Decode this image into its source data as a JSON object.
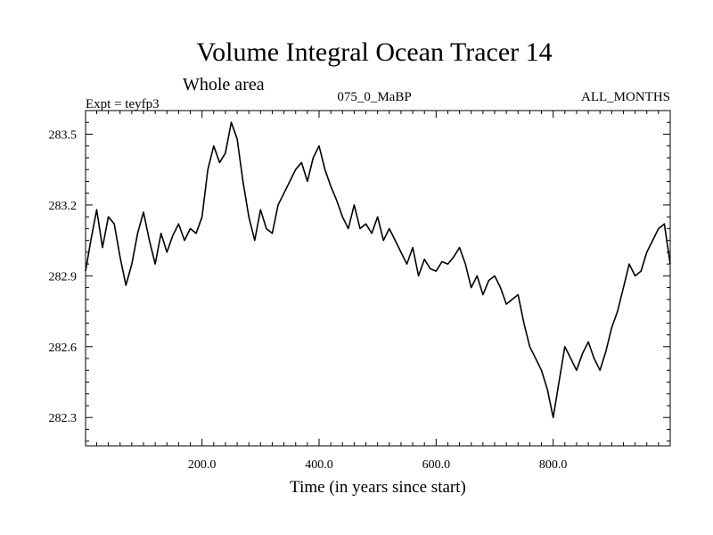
{
  "chart_data": {
    "type": "line",
    "title": "Volume Integral Ocean Tracer 14",
    "subtitle": "Whole area",
    "annotations": {
      "left": "Expt = teyfp3",
      "center": "075_0_MaBP",
      "right": "ALL_MONTHS"
    },
    "xlabel": "Time (in years since start)",
    "ylabel": "",
    "xlim": [
      1,
      1000
    ],
    "ylim": [
      282.18,
      283.6
    ],
    "x_ticks": [
      200,
      400,
      600,
      800
    ],
    "x_tick_labels": [
      "200.0",
      "400.0",
      "600.0",
      "800.0"
    ],
    "y_ticks": [
      282.3,
      282.6,
      282.9,
      283.2,
      283.5
    ],
    "y_tick_labels": [
      "282.3",
      "282.6",
      "282.9",
      "283.2",
      "283.5"
    ],
    "grid": false,
    "series": [
      {
        "name": "Volume Integral Ocean Tracer 14",
        "color": "#000000",
        "x": [
          1,
          10,
          20,
          30,
          40,
          50,
          60,
          70,
          80,
          90,
          100,
          110,
          120,
          130,
          140,
          150,
          160,
          170,
          180,
          190,
          200,
          210,
          220,
          230,
          240,
          250,
          260,
          270,
          280,
          290,
          300,
          310,
          320,
          330,
          340,
          350,
          360,
          370,
          380,
          390,
          400,
          410,
          420,
          430,
          440,
          450,
          460,
          470,
          480,
          490,
          500,
          510,
          520,
          530,
          540,
          550,
          560,
          570,
          580,
          590,
          600,
          610,
          620,
          630,
          640,
          650,
          660,
          670,
          680,
          690,
          700,
          710,
          720,
          730,
          740,
          750,
          760,
          770,
          780,
          790,
          800,
          810,
          820,
          830,
          840,
          850,
          860,
          870,
          880,
          890,
          900,
          910,
          920,
          930,
          940,
          950,
          960,
          970,
          980,
          990,
          1000
        ],
        "values": [
          282.92,
          283.05,
          283.18,
          283.02,
          283.15,
          283.12,
          282.98,
          282.86,
          282.95,
          283.08,
          283.17,
          283.05,
          282.95,
          283.08,
          283.0,
          283.07,
          283.12,
          283.05,
          283.1,
          283.08,
          283.15,
          283.35,
          283.45,
          283.38,
          283.42,
          283.55,
          283.48,
          283.3,
          283.15,
          283.05,
          283.18,
          283.1,
          283.08,
          283.2,
          283.25,
          283.3,
          283.35,
          283.38,
          283.3,
          283.4,
          283.45,
          283.35,
          283.28,
          283.22,
          283.15,
          283.1,
          283.2,
          283.1,
          283.12,
          283.08,
          283.15,
          283.05,
          283.1,
          283.05,
          283.0,
          282.95,
          283.02,
          282.9,
          282.97,
          282.93,
          282.92,
          282.96,
          282.95,
          282.98,
          283.02,
          282.95,
          282.85,
          282.9,
          282.82,
          282.88,
          282.9,
          282.85,
          282.78,
          282.8,
          282.82,
          282.7,
          282.6,
          282.55,
          282.5,
          282.42,
          282.3,
          282.45,
          282.6,
          282.55,
          282.5,
          282.57,
          282.62,
          282.55,
          282.5,
          282.58,
          282.68,
          282.75,
          282.85,
          282.95,
          282.9,
          282.92,
          283.0,
          283.05,
          283.1,
          283.12,
          282.95
        ]
      }
    ]
  }
}
